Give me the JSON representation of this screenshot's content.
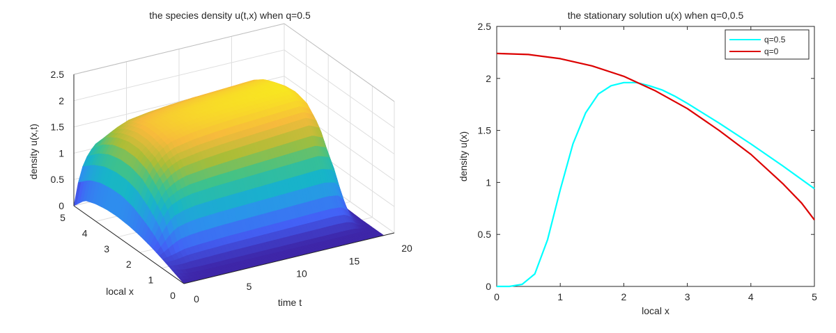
{
  "chart_data": [
    {
      "type": "surface",
      "title": "the species density u(t,x) when q=0.5",
      "xlabel": "time t",
      "ylabel": "local x",
      "zlabel": "density u(x,t)",
      "xlim": [
        0,
        20
      ],
      "ylim": [
        0,
        5
      ],
      "zlim": [
        0,
        2.5
      ],
      "xticks": [
        "0",
        "5",
        "10",
        "15",
        "20"
      ],
      "yticks": [
        "0",
        "1",
        "2",
        "3",
        "4",
        "5"
      ],
      "zticks": [
        "0",
        "0.5",
        "1",
        "1.5",
        "2",
        "2.5"
      ],
      "grid": true,
      "colormap": "parula",
      "colormap_stops": [
        "#3e26a8",
        "#4361f6",
        "#2c91ed",
        "#17b5c8",
        "#3fc28a",
        "#a9bd37",
        "#f7ba3c",
        "#f8e91f"
      ],
      "surface": {
        "t": [
          0,
          0.5,
          1,
          1.5,
          2,
          3,
          4,
          6,
          8,
          10,
          12,
          14,
          16,
          17,
          17.5,
          18,
          18.5,
          19
        ],
        "x": [
          0,
          0.5,
          1,
          1.5,
          2,
          2.5,
          3,
          3.5,
          4,
          4.5,
          5
        ],
        "u": [
          [
            0.0,
            0.0,
            0.0,
            0.0,
            0.0,
            0.0,
            0.0,
            0.0,
            0.0,
            0.0,
            0.0,
            0.0,
            0.0,
            0.0,
            0.0,
            0.0,
            0.0,
            0.0
          ],
          [
            0.09,
            0.06,
            0.03,
            0.01,
            0.01,
            0.0,
            0.0,
            0.0,
            0.0,
            0.0,
            0.0,
            0.0,
            0.0,
            0.0,
            0.0,
            0.0,
            0.0,
            0.0
          ],
          [
            0.18,
            0.2,
            0.22,
            0.25,
            0.28,
            0.3,
            0.31,
            0.33,
            0.34,
            0.35,
            0.36,
            0.37,
            0.38,
            0.36,
            0.28,
            0.1,
            0.03,
            0.0
          ],
          [
            0.26,
            0.45,
            0.65,
            0.82,
            0.92,
            1.0,
            1.04,
            1.07,
            1.09,
            1.11,
            1.13,
            1.15,
            1.17,
            1.1,
            0.85,
            0.35,
            0.08,
            0.01
          ],
          [
            0.32,
            0.62,
            0.9,
            1.1,
            1.25,
            1.42,
            1.5,
            1.56,
            1.6,
            1.63,
            1.66,
            1.69,
            1.72,
            1.62,
            1.25,
            0.5,
            0.12,
            0.02
          ],
          [
            0.36,
            0.75,
            1.08,
            1.3,
            1.45,
            1.65,
            1.76,
            1.84,
            1.88,
            1.91,
            1.93,
            1.95,
            1.97,
            1.86,
            1.44,
            0.58,
            0.14,
            0.02
          ],
          [
            0.38,
            0.82,
            1.15,
            1.38,
            1.55,
            1.72,
            1.82,
            1.9,
            1.95,
            1.98,
            2.0,
            2.02,
            2.04,
            1.93,
            1.49,
            0.6,
            0.15,
            0.02
          ],
          [
            0.37,
            0.82,
            1.15,
            1.38,
            1.55,
            1.72,
            1.82,
            1.89,
            1.93,
            1.96,
            1.98,
            2.0,
            2.02,
            1.9,
            1.47,
            0.59,
            0.14,
            0.02
          ],
          [
            0.33,
            0.78,
            1.1,
            1.32,
            1.48,
            1.64,
            1.74,
            1.8,
            1.84,
            1.87,
            1.89,
            1.91,
            1.93,
            1.82,
            1.4,
            0.56,
            0.14,
            0.02
          ],
          [
            0.25,
            0.68,
            0.98,
            1.18,
            1.34,
            1.49,
            1.58,
            1.64,
            1.68,
            1.71,
            1.73,
            1.75,
            1.77,
            1.67,
            1.29,
            0.52,
            0.13,
            0.02
          ],
          [
            0.0,
            0.5,
            0.8,
            0.95,
            1.07,
            1.17,
            1.21,
            1.24,
            1.27,
            1.3,
            1.33,
            1.35,
            1.37,
            1.29,
            1.0,
            0.4,
            0.1,
            0.01
          ]
        ]
      }
    },
    {
      "type": "line",
      "title": "the stationary solution u(x) when q=0,0.5",
      "xlabel": "local x",
      "ylabel": "density u(x)",
      "xlim": [
        0,
        5
      ],
      "ylim": [
        0,
        2.5
      ],
      "xticks": [
        "0",
        "1",
        "2",
        "3",
        "4",
        "5"
      ],
      "yticks": [
        "0",
        "0.5",
        "1",
        "1.5",
        "2",
        "2.5"
      ],
      "grid": false,
      "legend_position": "top-right",
      "series": [
        {
          "name": "q=0.5",
          "color": "#00ffff",
          "x": [
            0,
            0.2,
            0.4,
            0.6,
            0.8,
            1.0,
            1.2,
            1.4,
            1.6,
            1.8,
            2.0,
            2.2,
            2.4,
            2.6,
            2.8,
            3.0,
            3.5,
            4.0,
            4.5,
            5.0
          ],
          "y": [
            0.0,
            0.0,
            0.02,
            0.12,
            0.45,
            0.93,
            1.37,
            1.67,
            1.85,
            1.93,
            1.96,
            1.96,
            1.93,
            1.89,
            1.83,
            1.76,
            1.57,
            1.37,
            1.16,
            0.94
          ]
        },
        {
          "name": "q=0",
          "color": "#dc0000",
          "x": [
            0,
            0.5,
            1.0,
            1.5,
            2.0,
            2.5,
            3.0,
            3.5,
            4.0,
            4.5,
            4.8,
            5.0
          ],
          "y": [
            2.24,
            2.23,
            2.19,
            2.12,
            2.02,
            1.88,
            1.71,
            1.5,
            1.27,
            0.99,
            0.8,
            0.64
          ]
        }
      ]
    }
  ]
}
